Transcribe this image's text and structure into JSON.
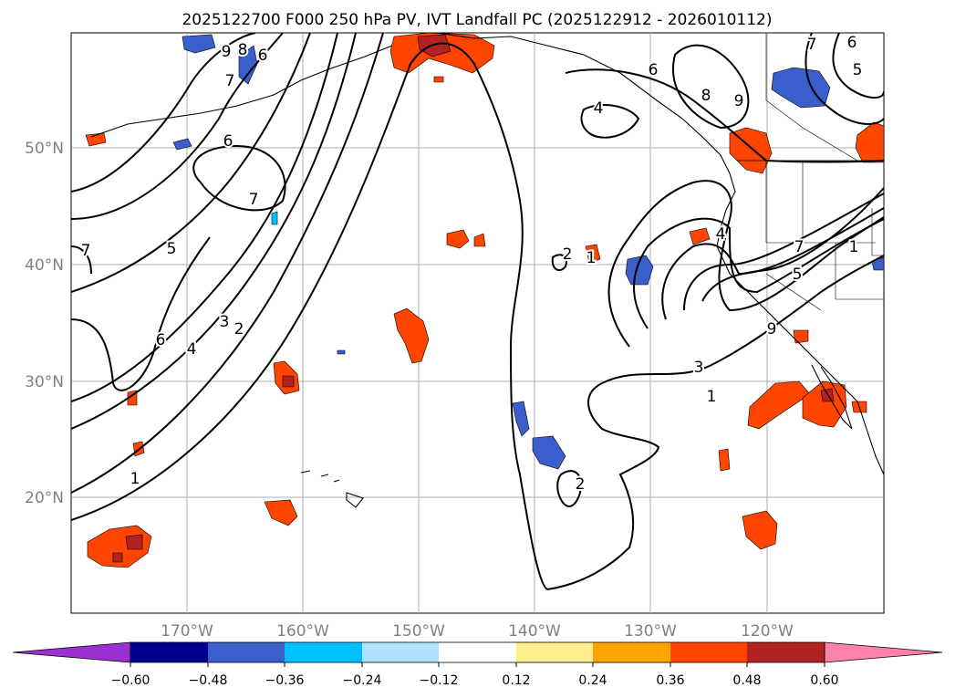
{
  "title": "2025122700 F000 250 hPa PV, IVT Landfall PC (2025122912 - 2026010112)",
  "map": {
    "lat_labels": [
      "50°N",
      "40°N",
      "30°N",
      "20°N"
    ],
    "lon_labels": [
      "170°W",
      "160°W",
      "150°W",
      "140°W",
      "130°W",
      "120°W"
    ],
    "contour_labels": [
      "9",
      "8",
      "7",
      "6",
      "6",
      "7",
      "7",
      "5",
      "6",
      "4",
      "3",
      "2",
      "1",
      "1",
      "2",
      "2",
      "4",
      "9",
      "8",
      "7",
      "6",
      "5",
      "4",
      "3",
      "1",
      "1",
      "7",
      "6",
      "5",
      "9"
    ]
  },
  "colorbar": {
    "ticks": [
      "−0.60",
      "−0.48",
      "−0.36",
      "−0.24",
      "−0.12",
      "0.12",
      "0.24",
      "0.36",
      "0.48",
      "0.60"
    ],
    "colors": [
      "#9b30d0",
      "#000090",
      "#3a5fcd",
      "#00bfff",
      "#b0e2ff",
      "#ffffff",
      "#ffec8b",
      "#ffa500",
      "#ff4500",
      "#b22222",
      "#ff82ab"
    ]
  }
}
